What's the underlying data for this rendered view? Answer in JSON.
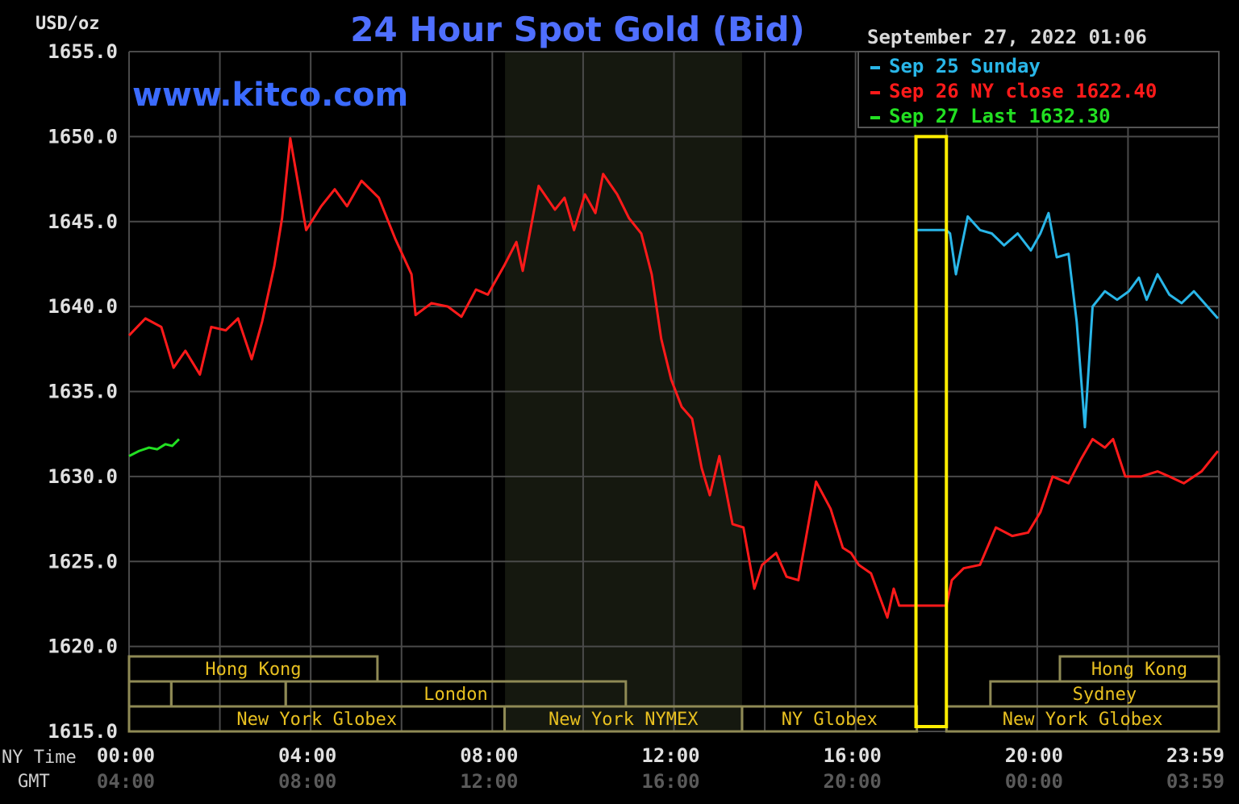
{
  "chart_data": {
    "type": "line",
    "title": "24 Hour Spot Gold (Bid)",
    "watermark": "www.kitco.com",
    "ylabel": "USD/oz",
    "timestamp": "September 27, 2022 01:06",
    "ylim": [
      1615,
      1655
    ],
    "xlim_hours": [
      0,
      24
    ],
    "grid": true,
    "legend_placement": "top-right",
    "y_ticks": [
      "1655.0",
      "1650.0",
      "1645.0",
      "1640.0",
      "1635.0",
      "1630.0",
      "1625.0",
      "1620.0",
      "1615.0"
    ],
    "x_axis": {
      "ny_label": "NY Time",
      "gmt_label": "GMT",
      "ny_ticks": [
        "00:00",
        "04:00",
        "08:00",
        "12:00",
        "16:00",
        "20:00",
        "23:59"
      ],
      "gmt_ticks": [
        "04:00",
        "08:00",
        "12:00",
        "16:00",
        "20:00",
        "00:00",
        "03:59"
      ]
    },
    "shaded_hours": [
      8.28,
      13.5
    ],
    "highlight_hours": [
      17.33,
      18.0
    ],
    "series": [
      {
        "name": "Sep 25 Sunday",
        "legend": "Sep 25 Sunday",
        "color": "#29b6e8",
        "points": [
          [
            17.32,
            1644.5
          ],
          [
            18.0,
            1644.5
          ],
          [
            18.08,
            1644.3
          ],
          [
            18.21,
            1641.9
          ],
          [
            18.47,
            1645.3
          ],
          [
            18.74,
            1644.5
          ],
          [
            19.0,
            1644.3
          ],
          [
            19.27,
            1643.6
          ],
          [
            19.57,
            1644.3
          ],
          [
            19.86,
            1643.3
          ],
          [
            20.07,
            1644.3
          ],
          [
            20.25,
            1645.5
          ],
          [
            20.43,
            1642.9
          ],
          [
            20.69,
            1643.1
          ],
          [
            20.87,
            1639.1
          ],
          [
            21.05,
            1632.9
          ],
          [
            21.22,
            1640.0
          ],
          [
            21.49,
            1640.9
          ],
          [
            21.76,
            1640.4
          ],
          [
            22.02,
            1640.9
          ],
          [
            22.24,
            1641.7
          ],
          [
            22.41,
            1640.4
          ],
          [
            22.65,
            1641.9
          ],
          [
            22.91,
            1640.7
          ],
          [
            23.18,
            1640.2
          ],
          [
            23.45,
            1640.9
          ],
          [
            23.98,
            1639.3
          ]
        ]
      },
      {
        "name": "Sep 26 NY close",
        "legend": "Sep 26 NY close 1622.40",
        "color": "#ff1a1a",
        "points": [
          [
            0,
            1638.3
          ],
          [
            0.36,
            1639.3
          ],
          [
            0.71,
            1638.8
          ],
          [
            0.98,
            1636.4
          ],
          [
            1.24,
            1637.4
          ],
          [
            1.56,
            1636.0
          ],
          [
            1.81,
            1638.8
          ],
          [
            2.13,
            1638.6
          ],
          [
            2.4,
            1639.3
          ],
          [
            2.7,
            1636.9
          ],
          [
            2.93,
            1639.1
          ],
          [
            3.2,
            1642.4
          ],
          [
            3.37,
            1645.2
          ],
          [
            3.55,
            1649.9
          ],
          [
            3.9,
            1644.5
          ],
          [
            4.23,
            1645.9
          ],
          [
            4.53,
            1646.9
          ],
          [
            4.8,
            1645.9
          ],
          [
            5.12,
            1647.4
          ],
          [
            5.5,
            1646.4
          ],
          [
            5.86,
            1644.0
          ],
          [
            6.22,
            1641.9
          ],
          [
            6.31,
            1639.5
          ],
          [
            6.66,
            1640.2
          ],
          [
            7.02,
            1640.0
          ],
          [
            7.32,
            1639.4
          ],
          [
            7.64,
            1641.0
          ],
          [
            7.9,
            1640.7
          ],
          [
            8.26,
            1642.4
          ],
          [
            8.53,
            1643.8
          ],
          [
            8.67,
            1642.1
          ],
          [
            9.02,
            1647.1
          ],
          [
            9.38,
            1645.7
          ],
          [
            9.59,
            1646.4
          ],
          [
            9.8,
            1644.5
          ],
          [
            10.04,
            1646.6
          ],
          [
            10.27,
            1645.5
          ],
          [
            10.44,
            1647.8
          ],
          [
            10.75,
            1646.6
          ],
          [
            11.01,
            1645.2
          ],
          [
            11.28,
            1644.3
          ],
          [
            11.51,
            1641.9
          ],
          [
            11.72,
            1638.1
          ],
          [
            11.94,
            1635.7
          ],
          [
            12.17,
            1634.1
          ],
          [
            12.4,
            1633.4
          ],
          [
            12.61,
            1630.5
          ],
          [
            12.79,
            1628.9
          ],
          [
            13.0,
            1631.2
          ],
          [
            13.29,
            1627.2
          ],
          [
            13.53,
            1627.0
          ],
          [
            13.77,
            1623.4
          ],
          [
            13.94,
            1624.8
          ],
          [
            14.25,
            1625.5
          ],
          [
            14.48,
            1624.1
          ],
          [
            14.74,
            1623.9
          ],
          [
            15.13,
            1629.7
          ],
          [
            15.45,
            1628.1
          ],
          [
            15.72,
            1625.8
          ],
          [
            15.9,
            1625.5
          ],
          [
            16.07,
            1624.8
          ],
          [
            16.34,
            1624.3
          ],
          [
            16.7,
            1621.7
          ],
          [
            16.84,
            1623.4
          ],
          [
            16.96,
            1622.4
          ],
          [
            18.0,
            1622.4
          ],
          [
            18.12,
            1623.9
          ],
          [
            18.38,
            1624.6
          ],
          [
            18.74,
            1624.8
          ],
          [
            19.09,
            1627.0
          ],
          [
            19.45,
            1626.5
          ],
          [
            19.8,
            1626.7
          ],
          [
            20.07,
            1627.9
          ],
          [
            20.34,
            1630.0
          ],
          [
            20.69,
            1629.6
          ],
          [
            20.96,
            1631.0
          ],
          [
            21.22,
            1632.2
          ],
          [
            21.49,
            1631.7
          ],
          [
            21.67,
            1632.2
          ],
          [
            21.94,
            1630.0
          ],
          [
            22.29,
            1630.0
          ],
          [
            22.65,
            1630.3
          ],
          [
            22.91,
            1630.0
          ],
          [
            23.23,
            1629.6
          ],
          [
            23.62,
            1630.3
          ],
          [
            23.98,
            1631.5
          ]
        ]
      },
      {
        "name": "Sep 27 Last",
        "legend": "Sep 27 Last 1632.30",
        "color": "#22e022",
        "points": [
          [
            0,
            1631.2
          ],
          [
            0.22,
            1631.5
          ],
          [
            0.44,
            1631.7
          ],
          [
            0.62,
            1631.6
          ],
          [
            0.8,
            1631.9
          ],
          [
            0.95,
            1631.8
          ],
          [
            1.1,
            1632.2
          ]
        ]
      }
    ],
    "sessions": [
      {
        "label": "Hong Kong",
        "row": 0,
        "start": 0,
        "end": 5.47
      },
      {
        "label": "Hong Kong",
        "row": 0,
        "start": 20.5,
        "end": 24
      },
      {
        "label": "",
        "row": 1,
        "start": 0,
        "end": 0.93
      },
      {
        "label": "",
        "row": 1,
        "start": 0.93,
        "end": 3.45
      },
      {
        "label": "London",
        "row": 1,
        "start": 3.45,
        "end": 10.94
      },
      {
        "label": "Sydney",
        "row": 1,
        "start": 18.97,
        "end": 24
      },
      {
        "label": "New York Globex",
        "row": 2,
        "start": 0,
        "end": 8.27
      },
      {
        "label": "New York NYMEX",
        "row": 2,
        "start": 8.27,
        "end": 13.5
      },
      {
        "label": "NY Globex",
        "row": 2,
        "start": 13.5,
        "end": 17.35
      },
      {
        "label": "New York Globex",
        "row": 2,
        "start": 18.0,
        "end": 24
      }
    ]
  }
}
